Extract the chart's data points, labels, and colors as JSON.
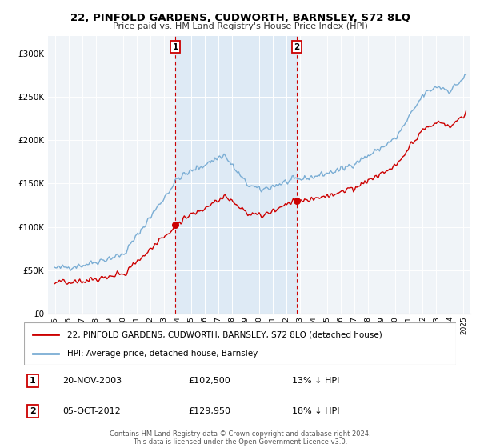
{
  "title": "22, PINFOLD GARDENS, CUDWORTH, BARNSLEY, S72 8LQ",
  "subtitle": "Price paid vs. HM Land Registry's House Price Index (HPI)",
  "property_label": "22, PINFOLD GARDENS, CUDWORTH, BARNSLEY, S72 8LQ (detached house)",
  "hpi_label": "HPI: Average price, detached house, Barnsley",
  "property_color": "#cc0000",
  "hpi_color": "#7aadd4",
  "shade_color": "#deeaf5",
  "marker1_year": 2003,
  "marker1_month": 10,
  "marker1_price": 102500,
  "marker2_year": 2012,
  "marker2_month": 9,
  "marker2_price": 129950,
  "marker1_date": "20-NOV-2003",
  "marker1_pct": "13%",
  "marker2_date": "05-OCT-2012",
  "marker2_pct": "18%",
  "footnote": "Contains HM Land Registry data © Crown copyright and database right 2024.\nThis data is licensed under the Open Government Licence v3.0.",
  "ylim": [
    0,
    320000
  ],
  "yticks": [
    0,
    50000,
    100000,
    150000,
    200000,
    250000,
    300000
  ],
  "background_color": "#ffffff",
  "plot_bg_color": "#f0f4f8"
}
